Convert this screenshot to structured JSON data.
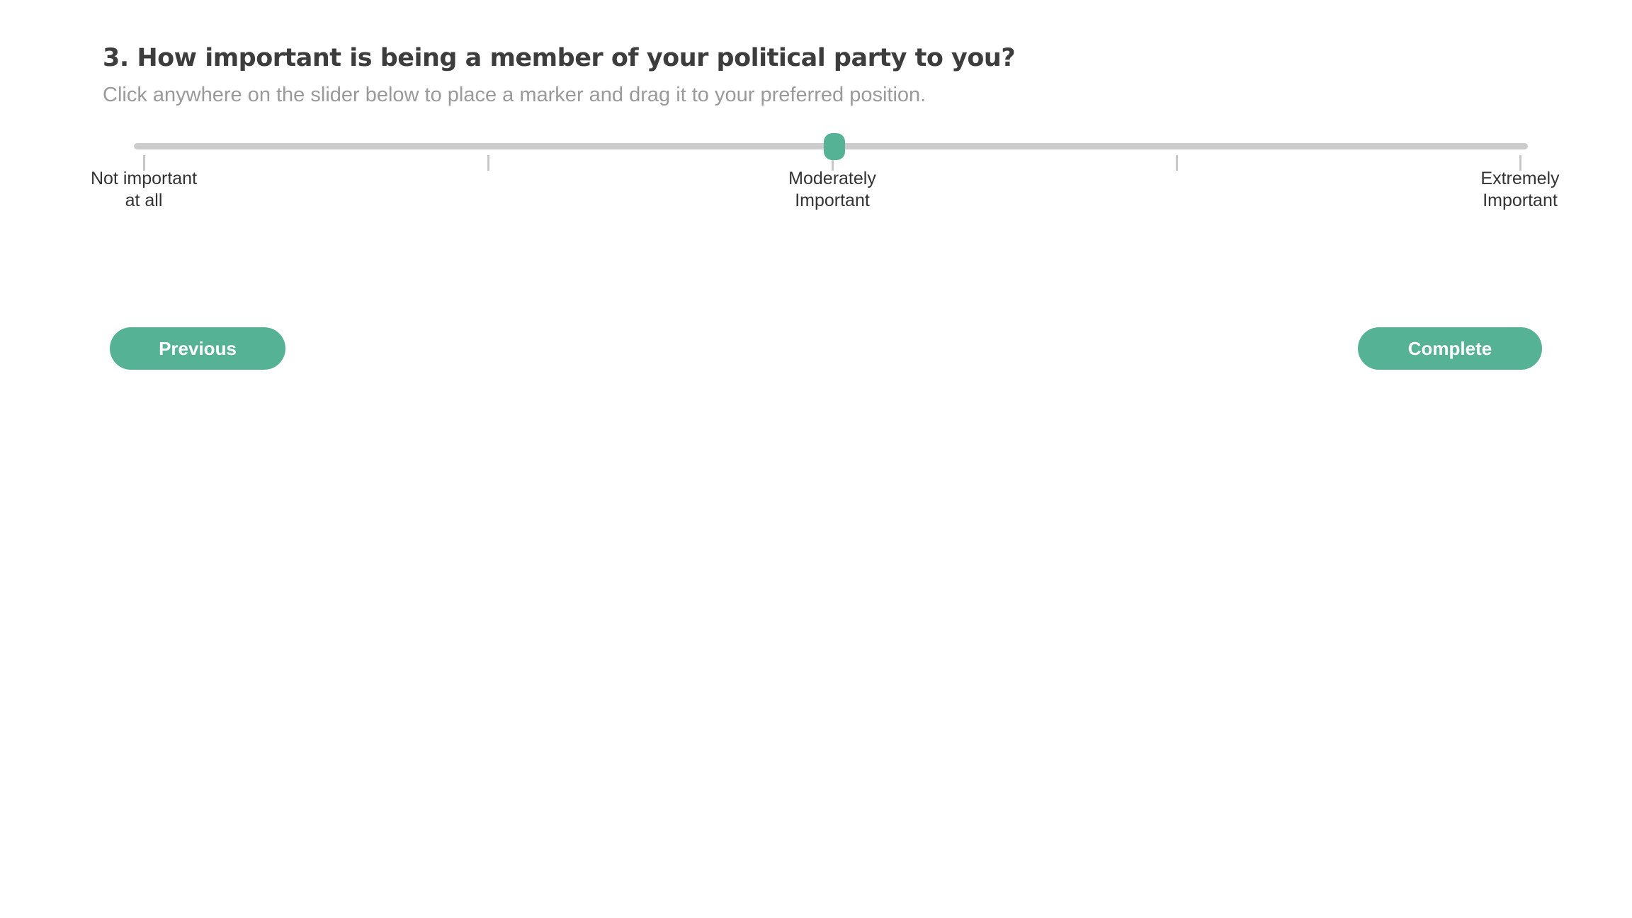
{
  "question": {
    "title": "3. How important is being a member of your political party to you?",
    "instructions": "Click anywhere on the slider below to place a marker and drag it to your preferred position."
  },
  "slider": {
    "min": 0,
    "max": 4,
    "value": 2,
    "tick_count": 5,
    "labels": [
      {
        "position": 0,
        "lines": [
          "Not important",
          "at all"
        ]
      },
      {
        "position": 2,
        "lines": [
          "Moderately",
          "Important"
        ]
      },
      {
        "position": 4,
        "lines": [
          "Extremely",
          "Important"
        ]
      }
    ]
  },
  "navigation": {
    "previous_label": "Previous",
    "complete_label": "Complete"
  },
  "colors": {
    "accent": "#55b294",
    "track": "#cccccc",
    "title": "#3d3d3d",
    "instructions": "#9a9a9a"
  }
}
